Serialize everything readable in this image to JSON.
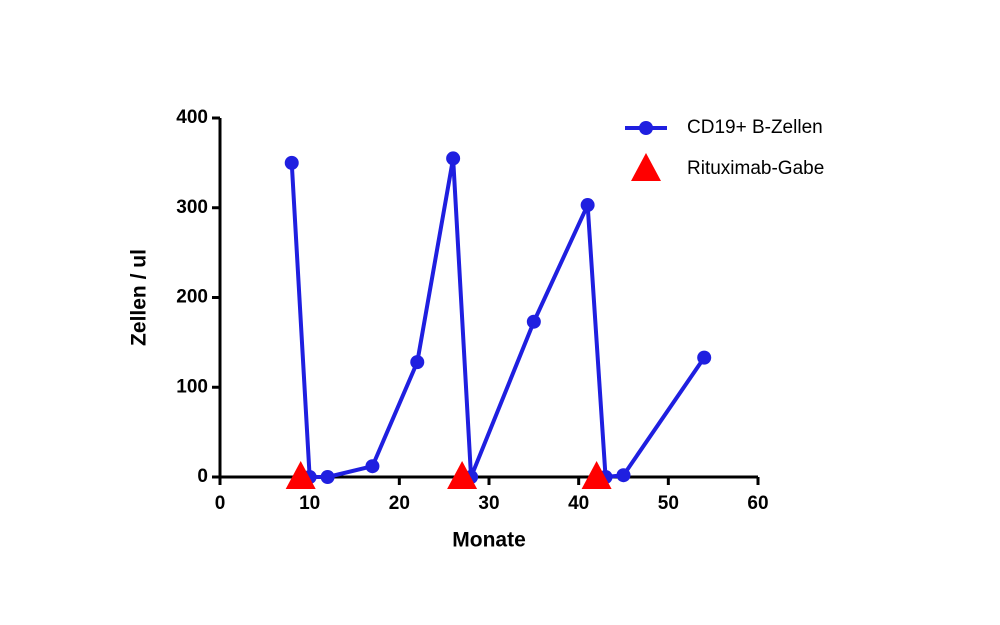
{
  "chart_data": {
    "type": "line",
    "xlabel": "Monate",
    "ylabel": "Zellen / ul",
    "xlim": [
      0,
      60
    ],
    "xticks": [
      0,
      10,
      20,
      30,
      40,
      50,
      60
    ],
    "ylim": [
      0,
      400
    ],
    "yticks": [
      0,
      100,
      200,
      300,
      400
    ],
    "grid": false,
    "legend": "upper right",
    "series": [
      {
        "name": "CD19+ B-Zellen",
        "color": "#1f1fe0",
        "marker": "circle",
        "line": true,
        "x": [
          8,
          10,
          12,
          17,
          22,
          26,
          28,
          35,
          41,
          43,
          45,
          54
        ],
        "values": [
          350,
          0,
          0,
          12,
          128,
          355,
          0,
          173,
          303,
          0,
          2,
          133
        ]
      },
      {
        "name": "Rituximab-Gabe",
        "color": "#ff0000",
        "marker": "triangle",
        "line": false,
        "x": [
          9,
          27,
          42
        ],
        "values": [
          0,
          0,
          0
        ]
      }
    ]
  }
}
